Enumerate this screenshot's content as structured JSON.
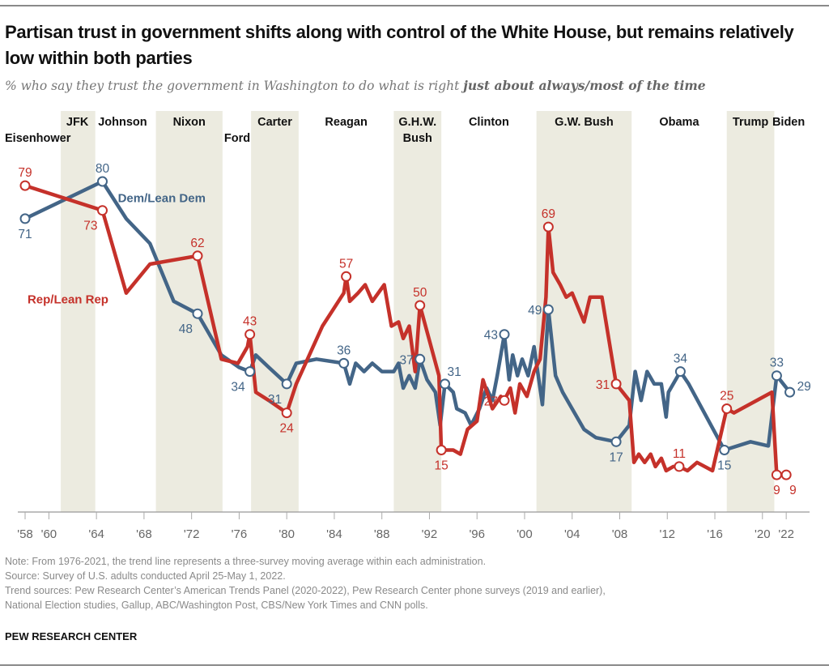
{
  "header": {
    "title": "Partisan trust in government shifts along with control of the White House, but remains relatively low within both parties",
    "subtitle_plain": "% who say they trust the government in Washington to do what is right ",
    "subtitle_bold": "just about always/most of the time"
  },
  "footer": {
    "note": "Note: From 1976-2021, the trend line represents a three-survey moving average within each administration.",
    "source": "Source: Survey of U.S. adults conducted April 25-May 1, 2022.",
    "trend_sources_1": "Trend sources: Pew Research Center’s American Trends Panel (2020-2022), Pew Research Center phone surveys (2019 and earlier),",
    "trend_sources_2": "National Election studies, Gallup, ABC/Washington Post, CBS/New York Times and CNN polls.",
    "brand": "PEW RESEARCH CENTER"
  },
  "chart_data": {
    "type": "line",
    "title": "Partisan trust in government shifts along with control of the White House, but remains relatively low within both parties",
    "ylabel": "% who trust government just about always/most of the time",
    "xlabel": "",
    "xlim": [
      1957.5,
      2023.8
    ],
    "ylim": [
      0,
      90
    ],
    "grid": false,
    "colors": {
      "dem": "#436587",
      "rep": "#c5312a",
      "band": "#ecebe0",
      "axis": "#999999"
    },
    "x_ticks": [
      {
        "year": 1958,
        "label": "'58"
      },
      {
        "year": 1960,
        "label": "'60"
      },
      {
        "year": 1964,
        "label": "'64"
      },
      {
        "year": 1968,
        "label": "'68"
      },
      {
        "year": 1972,
        "label": "'72"
      },
      {
        "year": 1976,
        "label": "'76"
      },
      {
        "year": 1980,
        "label": "'80"
      },
      {
        "year": 1984,
        "label": "'84"
      },
      {
        "year": 1988,
        "label": "'88"
      },
      {
        "year": 1992,
        "label": "'92"
      },
      {
        "year": 1996,
        "label": "'96"
      },
      {
        "year": 2000,
        "label": "'00"
      },
      {
        "year": 2004,
        "label": "'04"
      },
      {
        "year": 2008,
        "label": "'08"
      },
      {
        "year": 2012,
        "label": "'12"
      },
      {
        "year": 2016,
        "label": "'16"
      },
      {
        "year": 2020,
        "label": "'20"
      },
      {
        "year": 2022,
        "label": "'22"
      }
    ],
    "administrations": [
      {
        "name": "Eisenhower",
        "start": 1957.5,
        "end": 1961.0,
        "shaded": false,
        "label_lines": [
          "Eisenhower"
        ],
        "label_row": 2
      },
      {
        "name": "JFK",
        "start": 1961.0,
        "end": 1963.9,
        "shaded": true,
        "label_lines": [
          "JFK"
        ],
        "label_row": 1
      },
      {
        "name": "Johnson",
        "start": 1963.9,
        "end": 1969.0,
        "shaded": false,
        "label_lines": [
          "Johnson"
        ],
        "label_row": 1
      },
      {
        "name": "Nixon",
        "start": 1969.0,
        "end": 1974.6,
        "shaded": true,
        "label_lines": [
          "Nixon"
        ],
        "label_row": 1
      },
      {
        "name": "Ford",
        "start": 1974.6,
        "end": 1977.0,
        "shaded": false,
        "label_lines": [
          "Ford"
        ],
        "label_row": 2
      },
      {
        "name": "Carter",
        "start": 1977.0,
        "end": 1981.0,
        "shaded": true,
        "label_lines": [
          "Carter"
        ],
        "label_row": 1
      },
      {
        "name": "Reagan",
        "start": 1981.0,
        "end": 1989.0,
        "shaded": false,
        "label_lines": [
          "Reagan"
        ],
        "label_row": 1
      },
      {
        "name": "G.H.W. Bush",
        "start": 1989.0,
        "end": 1993.0,
        "shaded": true,
        "label_lines": [
          "G.H.W.",
          "Bush"
        ],
        "label_row": 1
      },
      {
        "name": "Clinton",
        "start": 1993.0,
        "end": 2001.0,
        "shaded": false,
        "label_lines": [
          "Clinton"
        ],
        "label_row": 1
      },
      {
        "name": "G.W. Bush",
        "start": 2001.0,
        "end": 2009.0,
        "shaded": true,
        "label_lines": [
          "G.W. Bush"
        ],
        "label_row": 1
      },
      {
        "name": "Obama",
        "start": 2009.0,
        "end": 2017.0,
        "shaded": false,
        "label_lines": [
          "Obama"
        ],
        "label_row": 1
      },
      {
        "name": "Trump",
        "start": 2017.0,
        "end": 2021.0,
        "shaded": true,
        "label_lines": [
          "Trump"
        ],
        "label_row": 1
      },
      {
        "name": "Biden",
        "start": 2021.0,
        "end": 2023.8,
        "shaded": false,
        "label_lines": [
          "Biden"
        ],
        "label_row": 1
      }
    ],
    "series": [
      {
        "name": "Dem/Lean Dem",
        "key": "dem",
        "legend_label": "Dem/Lean Dem",
        "legend_anchor": {
          "x": 1965.8,
          "y": 75
        },
        "points": [
          [
            1958.0,
            71
          ],
          [
            1964.5,
            80
          ],
          [
            1966.5,
            71
          ],
          [
            1968.5,
            65
          ],
          [
            1970.5,
            51
          ],
          [
            1972.5,
            48
          ],
          [
            1974.5,
            38
          ],
          [
            1976.0,
            35
          ],
          [
            1976.9,
            34
          ],
          [
            1977.4,
            38
          ],
          [
            1978.5,
            35
          ],
          [
            1980.0,
            31
          ],
          [
            1980.8,
            36
          ],
          [
            1982.5,
            37
          ],
          [
            1984.8,
            36
          ],
          [
            1985.3,
            31
          ],
          [
            1985.8,
            36
          ],
          [
            1986.5,
            34
          ],
          [
            1987.2,
            36
          ],
          [
            1988.0,
            34
          ],
          [
            1989.0,
            34
          ],
          [
            1989.4,
            36
          ],
          [
            1989.8,
            30
          ],
          [
            1990.3,
            33
          ],
          [
            1990.8,
            30
          ],
          [
            1991.2,
            37
          ],
          [
            1991.8,
            32
          ],
          [
            1992.5,
            29
          ],
          [
            1992.9,
            21
          ],
          [
            1993.3,
            31
          ],
          [
            1994.0,
            29
          ],
          [
            1994.3,
            25
          ],
          [
            1995.0,
            24
          ],
          [
            1995.5,
            21
          ],
          [
            1996.2,
            25
          ],
          [
            1996.8,
            30
          ],
          [
            1997.3,
            27
          ],
          [
            1997.7,
            33
          ],
          [
            1998.3,
            43
          ],
          [
            1998.7,
            32
          ],
          [
            1999.0,
            38
          ],
          [
            1999.4,
            33
          ],
          [
            1999.8,
            37
          ],
          [
            2000.3,
            33
          ],
          [
            2000.8,
            40
          ],
          [
            2001.5,
            26
          ],
          [
            2002.0,
            49
          ],
          [
            2002.6,
            33
          ],
          [
            2003.2,
            29
          ],
          [
            2004.0,
            25
          ],
          [
            2005.0,
            20
          ],
          [
            2006.0,
            18
          ],
          [
            2007.7,
            17
          ],
          [
            2008.8,
            21
          ],
          [
            2009.3,
            34
          ],
          [
            2009.8,
            27
          ],
          [
            2010.3,
            34
          ],
          [
            2010.9,
            31
          ],
          [
            2011.5,
            31
          ],
          [
            2011.9,
            23
          ],
          [
            2012.1,
            29
          ],
          [
            2013.1,
            34
          ],
          [
            2013.8,
            31
          ],
          [
            2016.8,
            15
          ],
          [
            2019.0,
            17
          ],
          [
            2020.5,
            16
          ],
          [
            2021.2,
            33
          ],
          [
            2022.3,
            29
          ]
        ],
        "labeled_points": [
          {
            "x": 1958.0,
            "y": 71,
            "label": "71",
            "pos": "below"
          },
          {
            "x": 1964.5,
            "y": 80,
            "label": "80",
            "pos": "above"
          },
          {
            "x": 1972.5,
            "y": 48,
            "label": "48",
            "pos": "below-left"
          },
          {
            "x": 1976.9,
            "y": 34,
            "label": "34",
            "pos": "below-left"
          },
          {
            "x": 1980.0,
            "y": 31,
            "label": "31",
            "pos": "below-left"
          },
          {
            "x": 1984.8,
            "y": 36,
            "label": "36",
            "pos": "above"
          },
          {
            "x": 1991.2,
            "y": 37,
            "label": "37",
            "pos": "left"
          },
          {
            "x": 1993.3,
            "y": 31,
            "label": "31",
            "pos": "above-right"
          },
          {
            "x": 1998.3,
            "y": 43,
            "label": "43",
            "pos": "left"
          },
          {
            "x": 2002.0,
            "y": 49,
            "label": "49",
            "pos": "left"
          },
          {
            "x": 2007.7,
            "y": 17,
            "label": "17",
            "pos": "below"
          },
          {
            "x": 2013.1,
            "y": 34,
            "label": "34",
            "pos": "above"
          },
          {
            "x": 2016.8,
            "y": 15,
            "label": "15",
            "pos": "below"
          },
          {
            "x": 2021.2,
            "y": 33,
            "label": "33",
            "pos": "above"
          },
          {
            "x": 2022.3,
            "y": 29,
            "label": "29",
            "pos": "right"
          }
        ]
      },
      {
        "name": "Rep/Lean Rep",
        "key": "rep",
        "legend_label": "Rep/Lean Rep",
        "legend_anchor": {
          "x": 1958.2,
          "y": 50.5
        },
        "points": [
          [
            1958.0,
            79
          ],
          [
            1964.5,
            73
          ],
          [
            1966.5,
            53
          ],
          [
            1968.5,
            60
          ],
          [
            1972.5,
            62
          ],
          [
            1974.5,
            37
          ],
          [
            1975.9,
            36
          ],
          [
            1976.7,
            40
          ],
          [
            1976.9,
            43
          ],
          [
            1977.4,
            29
          ],
          [
            1978.5,
            27
          ],
          [
            1980.0,
            24
          ],
          [
            1980.8,
            31
          ],
          [
            1983.0,
            45
          ],
          [
            1984.8,
            53
          ],
          [
            1985.0,
            57
          ],
          [
            1985.3,
            51
          ],
          [
            1986.0,
            53
          ],
          [
            1986.6,
            55
          ],
          [
            1987.2,
            51
          ],
          [
            1988.2,
            55
          ],
          [
            1988.8,
            45
          ],
          [
            1989.4,
            46
          ],
          [
            1989.8,
            42
          ],
          [
            1990.3,
            45
          ],
          [
            1990.8,
            34
          ],
          [
            1991.2,
            50
          ],
          [
            1992.8,
            33
          ],
          [
            1993.0,
            15
          ],
          [
            1994.0,
            15
          ],
          [
            1994.6,
            14
          ],
          [
            1995.2,
            20
          ],
          [
            1996.0,
            22
          ],
          [
            1996.5,
            32
          ],
          [
            1997.3,
            25
          ],
          [
            1998.0,
            28
          ],
          [
            1998.3,
            27
          ],
          [
            1998.8,
            30
          ],
          [
            1999.2,
            24
          ],
          [
            1999.6,
            31
          ],
          [
            2000.2,
            28
          ],
          [
            2000.8,
            34
          ],
          [
            2001.3,
            37
          ],
          [
            2001.8,
            52
          ],
          [
            2002.0,
            69
          ],
          [
            2002.4,
            58
          ],
          [
            2003.0,
            55
          ],
          [
            2003.5,
            52
          ],
          [
            2004.0,
            53
          ],
          [
            2005.0,
            46
          ],
          [
            2005.5,
            52
          ],
          [
            2006.5,
            52
          ],
          [
            2007.7,
            31
          ],
          [
            2008.8,
            27
          ],
          [
            2009.2,
            12
          ],
          [
            2009.6,
            14
          ],
          [
            2010.1,
            12
          ],
          [
            2010.6,
            14
          ],
          [
            2011.0,
            11
          ],
          [
            2011.5,
            13
          ],
          [
            2011.9,
            10
          ],
          [
            2012.5,
            11
          ],
          [
            2013.0,
            11
          ],
          [
            2013.7,
            10
          ],
          [
            2014.5,
            12
          ],
          [
            2015.8,
            10
          ],
          [
            2017.0,
            25
          ],
          [
            2017.6,
            24
          ],
          [
            2020.8,
            29
          ],
          [
            2021.2,
            9
          ],
          [
            2022.0,
            9
          ]
        ],
        "labeled_points": [
          {
            "x": 1958.0,
            "y": 79,
            "label": "79",
            "pos": "above"
          },
          {
            "x": 1964.5,
            "y": 73,
            "label": "73",
            "pos": "below-left"
          },
          {
            "x": 1972.5,
            "y": 62,
            "label": "62",
            "pos": "above"
          },
          {
            "x": 1976.9,
            "y": 43,
            "label": "43",
            "pos": "above"
          },
          {
            "x": 1980.0,
            "y": 24,
            "label": "24",
            "pos": "below"
          },
          {
            "x": 1985.0,
            "y": 57,
            "label": "57",
            "pos": "above"
          },
          {
            "x": 1991.2,
            "y": 50,
            "label": "50",
            "pos": "above"
          },
          {
            "x": 1993.0,
            "y": 15,
            "label": "15",
            "pos": "below"
          },
          {
            "x": 1998.3,
            "y": 27,
            "label": "27",
            "pos": "left"
          },
          {
            "x": 2002.0,
            "y": 69,
            "label": "69",
            "pos": "above"
          },
          {
            "x": 2007.7,
            "y": 31,
            "label": "31",
            "pos": "left"
          },
          {
            "x": 2013.0,
            "y": 11,
            "label": "11",
            "pos": "above"
          },
          {
            "x": 2017.0,
            "y": 25,
            "label": "25",
            "pos": "above"
          },
          {
            "x": 2021.2,
            "y": 9,
            "label": "9",
            "pos": "below"
          },
          {
            "x": 2022.0,
            "y": 9,
            "label": "9",
            "pos": "below-right"
          }
        ]
      }
    ]
  }
}
